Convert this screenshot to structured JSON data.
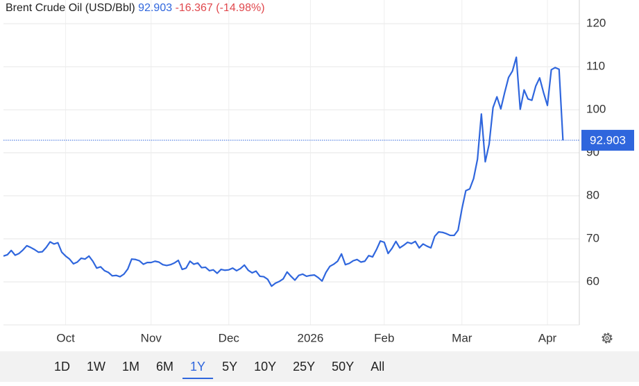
{
  "chart_data": {
    "type": "line",
    "title": "Brent Crude Oil (USD/Bbl)",
    "change": -16.367,
    "change_percent": {
      "value": -14.98,
      "label": "(-14.98%)"
    },
    "categories": [
      null,
      null,
      null,
      null,
      null,
      null,
      null,
      null,
      null,
      null,
      null,
      null,
      null,
      null,
      null,
      null,
      "Oct",
      null,
      null,
      null,
      null,
      null,
      null,
      null,
      null,
      null,
      null,
      null,
      null,
      null,
      null,
      null,
      null,
      null,
      null,
      null,
      null,
      null,
      "Nov",
      null,
      null,
      null,
      null,
      null,
      null,
      null,
      null,
      null,
      null,
      null,
      null,
      null,
      null,
      null,
      null,
      null,
      null,
      null,
      "Dec",
      null,
      null,
      null,
      null,
      null,
      null,
      null,
      null,
      null,
      null,
      null,
      null,
      null,
      null,
      null,
      null,
      null,
      null,
      null,
      null,
      "2026",
      null,
      null,
      null,
      null,
      null,
      null,
      null,
      null,
      null,
      null,
      null,
      null,
      null,
      null,
      null,
      null,
      null,
      null,
      "Feb",
      null,
      null,
      null,
      null,
      null,
      null,
      null,
      null,
      null,
      null,
      null,
      null,
      null,
      null,
      null,
      null,
      null,
      null,
      null,
      "Mar",
      null,
      null,
      null,
      null,
      null,
      null,
      null,
      null,
      null,
      null,
      null,
      null,
      null,
      null,
      null,
      null,
      null,
      null,
      null,
      null,
      null,
      "Apr",
      null,
      null,
      null,
      null
    ],
    "series": [
      {
        "name": "Brent Crude Oil",
        "color": "#2f66dd",
        "values": [
          66.0,
          66.3,
          67.3,
          66.2,
          66.6,
          67.4,
          68.4,
          68.0,
          67.5,
          66.9,
          67.0,
          68.0,
          69.3,
          68.8,
          69.1,
          66.9,
          66.0,
          65.3,
          64.2,
          64.6,
          65.5,
          65.3,
          66.0,
          64.8,
          63.2,
          63.5,
          62.6,
          62.2,
          61.4,
          61.5,
          61.2,
          61.8,
          63.0,
          65.3,
          65.2,
          64.9,
          64.1,
          64.5,
          64.5,
          64.8,
          64.6,
          64.0,
          63.8,
          64.0,
          64.4,
          65.0,
          62.9,
          63.2,
          64.8,
          64.1,
          64.4,
          63.3,
          63.4,
          62.6,
          62.8,
          62.0,
          62.9,
          62.7,
          62.8,
          63.2,
          62.6,
          63.1,
          63.9,
          62.7,
          62.1,
          62.5,
          61.3,
          61.2,
          60.6,
          59.0,
          59.7,
          60.1,
          60.7,
          62.3,
          61.3,
          60.4,
          61.5,
          61.8,
          61.3,
          61.5,
          61.6,
          61.0,
          60.2,
          62.2,
          63.6,
          64.1,
          64.8,
          66.5,
          64.0,
          64.3,
          64.9,
          65.2,
          64.6,
          64.8,
          66.1,
          65.8,
          67.5,
          69.5,
          69.2,
          66.6,
          67.8,
          69.4,
          67.9,
          68.5,
          69.2,
          68.9,
          69.4,
          67.9,
          68.8,
          68.3,
          67.9,
          70.6,
          71.6,
          71.5,
          71.2,
          70.8,
          70.8,
          72.0,
          77.0,
          81.2,
          81.6,
          84.0,
          88.5,
          99.0,
          87.9,
          92.0,
          100.5,
          103.0,
          100.2,
          104.0,
          107.5,
          109.0,
          112.2,
          100.1,
          104.6,
          102.5,
          102.2,
          105.5,
          107.4,
          104.0,
          101.0,
          109.3,
          109.8,
          109.4,
          92.903
        ]
      }
    ],
    "ylim": [
      50,
      125.5
    ],
    "yticks": [
      60,
      70,
      80,
      90,
      100,
      110,
      120
    ],
    "grid": true,
    "change_color": "#e0474c",
    "ranges": [
      "1D",
      "1W",
      "1M",
      "6M",
      "1Y",
      "5Y",
      "10Y",
      "25Y",
      "50Y",
      "All"
    ],
    "selected_range": "1Y"
  }
}
